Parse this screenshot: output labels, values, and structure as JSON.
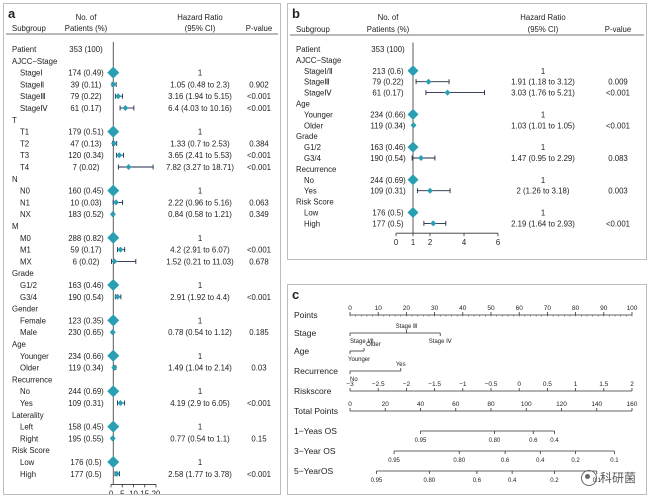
{
  "colors": {
    "diamond": "#2a9fb2",
    "line": "#1f2a44",
    "text": "#222222"
  },
  "panel_a": {
    "letter": "a",
    "headers": {
      "subgroup": "Subgroup",
      "patients_l1": "No. of",
      "patients_l2": "Patients (%)",
      "hr_l1": "Hazard Ratio",
      "hr_l2": "(95% CI)",
      "pvalue": "P-value"
    },
    "axis_ticks": [
      "0",
      "5",
      "10",
      "15",
      "20"
    ],
    "rows": [
      {
        "label": "Patient",
        "n": "353 (100)",
        "hr": "",
        "p": "",
        "kind": "group"
      },
      {
        "label": "AJCC−Stage",
        "n": "",
        "hr": "",
        "p": "",
        "kind": "group"
      },
      {
        "label": "StageⅠ",
        "n": "174 (0.49)",
        "hr": "1",
        "p": "",
        "kind": "sub"
      },
      {
        "label": "StageⅡ",
        "n": "39 (0.11)",
        "hr": "1.05 (0.48 to 2.3)",
        "p": "0.902",
        "kind": "sub"
      },
      {
        "label": "StageⅢ",
        "n": "79 (0.22)",
        "hr": "3.16 (1.94 to 5.15)",
        "p": "<0.001",
        "kind": "sub"
      },
      {
        "label": "StageⅣ",
        "n": "61 (0.17)",
        "hr": "6.4 (4.03 to 10.16)",
        "p": "<0.001",
        "kind": "sub"
      },
      {
        "label": "T",
        "n": "",
        "hr": "",
        "p": "",
        "kind": "group"
      },
      {
        "label": "T1",
        "n": "179 (0.51)",
        "hr": "1",
        "p": "",
        "kind": "sub"
      },
      {
        "label": "T2",
        "n": "47 (0.13)",
        "hr": "1.33 (0.7 to 2.53)",
        "p": "0.384",
        "kind": "sub"
      },
      {
        "label": "T3",
        "n": "120 (0.34)",
        "hr": "3.65 (2.41 to 5.53)",
        "p": "<0.001",
        "kind": "sub"
      },
      {
        "label": "T4",
        "n": "7 (0.02)",
        "hr": "7.82 (3.27 to 18.71)",
        "p": "<0.001",
        "kind": "sub"
      },
      {
        "label": "N",
        "n": "",
        "hr": "",
        "p": "",
        "kind": "group"
      },
      {
        "label": "N0",
        "n": "160 (0.45)",
        "hr": "1",
        "p": "",
        "kind": "sub"
      },
      {
        "label": "N1",
        "n": "10 (0.03)",
        "hr": "2.22 (0.96 to 5.16)",
        "p": "0.063",
        "kind": "sub"
      },
      {
        "label": "NX",
        "n": "183 (0.52)",
        "hr": "0.84 (0.58 to 1.21)",
        "p": "0.349",
        "kind": "sub"
      },
      {
        "label": "M",
        "n": "",
        "hr": "",
        "p": "",
        "kind": "group"
      },
      {
        "label": "M0",
        "n": "288 (0.82)",
        "hr": "1",
        "p": "",
        "kind": "sub"
      },
      {
        "label": "M1",
        "n": "59 (0.17)",
        "hr": "4.2 (2.91 to 6.07)",
        "p": "<0.001",
        "kind": "sub"
      },
      {
        "label": "MX",
        "n": "6 (0.02)",
        "hr": "1.52 (0.21 to 11.03)",
        "p": "0.678",
        "kind": "sub"
      },
      {
        "label": "Grade",
        "n": "",
        "hr": "",
        "p": "",
        "kind": "group"
      },
      {
        "label": "G1/2",
        "n": "163 (0.46)",
        "hr": "1",
        "p": "",
        "kind": "sub"
      },
      {
        "label": "G3/4",
        "n": "190 (0.54)",
        "hr": "2.91 (1.92 to 4.4)",
        "p": "<0.001",
        "kind": "sub"
      },
      {
        "label": "Gender",
        "n": "",
        "hr": "",
        "p": "",
        "kind": "group"
      },
      {
        "label": "Female",
        "n": "123 (0.35)",
        "hr": "1",
        "p": "",
        "kind": "sub"
      },
      {
        "label": "Male",
        "n": "230 (0.65)",
        "hr": "0.78 (0.54 to 1.12)",
        "p": "0.185",
        "kind": "sub"
      },
      {
        "label": "Age",
        "n": "",
        "hr": "",
        "p": "",
        "kind": "group"
      },
      {
        "label": "Younger",
        "n": "234 (0.66)",
        "hr": "1",
        "p": "",
        "kind": "sub"
      },
      {
        "label": "Older",
        "n": "119 (0.34)",
        "hr": "1.49 (1.04 to 2.14)",
        "p": "0.03",
        "kind": "sub"
      },
      {
        "label": "Recurrence",
        "n": "",
        "hr": "",
        "p": "",
        "kind": "group"
      },
      {
        "label": "No",
        "n": "244 (0.69)",
        "hr": "1",
        "p": "",
        "kind": "sub"
      },
      {
        "label": "Yes",
        "n": "109 (0.31)",
        "hr": "4.19 (2.9 to 6.05)",
        "p": "<0.001",
        "kind": "sub"
      },
      {
        "label": "Laterality",
        "n": "",
        "hr": "",
        "p": "",
        "kind": "group"
      },
      {
        "label": "Left",
        "n": "158 (0.45)",
        "hr": "1",
        "p": "",
        "kind": "sub"
      },
      {
        "label": "Right",
        "n": "195 (0.55)",
        "hr": "0.77 (0.54 to 1.1)",
        "p": "0.15",
        "kind": "sub"
      },
      {
        "label": "Risk Score",
        "n": "",
        "hr": "",
        "p": "",
        "kind": "group"
      },
      {
        "label": "Low",
        "n": "176 (0.5)",
        "hr": "1",
        "p": "",
        "kind": "sub"
      },
      {
        "label": "High",
        "n": "177 (0.5)",
        "hr": "2.58 (1.77 to 3.78)",
        "p": "<0.001",
        "kind": "sub"
      }
    ]
  },
  "panel_b": {
    "letter": "b",
    "headers": {
      "subgroup": "Subgroup",
      "patients_l1": "No. of",
      "patients_l2": "Patients (%)",
      "hr_l1": "Hazard Ratio",
      "hr_l2": "(95% CI)",
      "pvalue": "P-value"
    },
    "axis_ticks": [
      "0",
      "1",
      "2",
      "4",
      "6"
    ],
    "rows": [
      {
        "label": "Patient",
        "n": "353 (100)",
        "hr": "",
        "p": "",
        "kind": "group"
      },
      {
        "label": "AJCC−Stage",
        "n": "",
        "hr": "",
        "p": "",
        "kind": "group"
      },
      {
        "label": "StageⅠ/Ⅱ",
        "n": "213 (0.6)",
        "hr": "1",
        "p": "",
        "kind": "sub"
      },
      {
        "label": "StageⅢ",
        "n": "79 (0.22)",
        "hr": "1.91 (1.18 to 3.12)",
        "p": "0.009",
        "kind": "sub"
      },
      {
        "label": "StageⅣ",
        "n": "61 (0.17)",
        "hr": "3.03 (1.76 to 5.21)",
        "p": "<0.001",
        "kind": "sub"
      },
      {
        "label": "Age",
        "n": "",
        "hr": "",
        "p": "",
        "kind": "group"
      },
      {
        "label": "Younger",
        "n": "234 (0.66)",
        "hr": "1",
        "p": "",
        "kind": "sub"
      },
      {
        "label": "Older",
        "n": "119 (0.34)",
        "hr": "1.03 (1.01 to 1.05)",
        "p": "<0.001",
        "kind": "sub"
      },
      {
        "label": "Grade",
        "n": "",
        "hr": "",
        "p": "",
        "kind": "group"
      },
      {
        "label": "G1/2",
        "n": "163 (0.46)",
        "hr": "1",
        "p": "",
        "kind": "sub"
      },
      {
        "label": "G3/4",
        "n": "190 (0.54)",
        "hr": "1.47 (0.95 to 2.29)",
        "p": "0.083",
        "kind": "sub"
      },
      {
        "label": "Recurrence",
        "n": "",
        "hr": "",
        "p": "",
        "kind": "group"
      },
      {
        "label": "No",
        "n": "244 (0.69)",
        "hr": "1",
        "p": "",
        "kind": "sub"
      },
      {
        "label": "Yes",
        "n": "109 (0.31)",
        "hr": "2 (1.26 to 3.18)",
        "p": "0.003",
        "kind": "sub"
      },
      {
        "label": "Risk Score",
        "n": "",
        "hr": "",
        "p": "",
        "kind": "group"
      },
      {
        "label": "Low",
        "n": "176 (0.5)",
        "hr": "1",
        "p": "",
        "kind": "sub"
      },
      {
        "label": "High",
        "n": "177 (0.5)",
        "hr": "2.19 (1.64 to 2.93)",
        "p": "<0.001",
        "kind": "sub"
      }
    ]
  },
  "panel_c": {
    "letter": "c",
    "rows": [
      {
        "label": "Points",
        "kind": "points",
        "ticks": [
          "0",
          "10",
          "20",
          "30",
          "40",
          "50",
          "60",
          "70",
          "80",
          "90",
          "100"
        ]
      },
      {
        "label": "Stage",
        "kind": "stage",
        "values": [
          "Stage Ⅰ/Ⅱ",
          "Stage Ⅲ",
          "Stage Ⅳ"
        ]
      },
      {
        "label": "Age",
        "kind": "age",
        "values": [
          "Younger",
          "Older"
        ]
      },
      {
        "label": "Recurrence",
        "kind": "recurrence",
        "values": [
          "No",
          "Yes"
        ]
      },
      {
        "label": "Riskscore",
        "kind": "riskscore",
        "ticks": [
          "−3",
          "−2.5",
          "−2",
          "−1.5",
          "−1",
          "−0.5",
          "0",
          "0.5",
          "1",
          "1.5",
          "2"
        ]
      },
      {
        "label": "Total Points",
        "kind": "total",
        "ticks": [
          "0",
          "20",
          "40",
          "60",
          "80",
          "100",
          "120",
          "140",
          "160"
        ]
      },
      {
        "label": "1−Yeas OS",
        "kind": "os1",
        "ticks": [
          "0.95",
          "0.80",
          "0.6",
          "0.4"
        ]
      },
      {
        "label": "3−Year OS",
        "kind": "os3",
        "ticks": [
          "0.95",
          "0.80",
          "0.6",
          "0.4",
          "0.2",
          "0.1"
        ]
      },
      {
        "label": "5−YearOS",
        "kind": "os5",
        "ticks": [
          "0.95",
          "0.80",
          "0.6",
          "0.4",
          "0.2",
          "0.1"
        ]
      }
    ]
  },
  "watermark": {
    "text": "科研菌",
    "icon": "wechat-icon"
  },
  "chart_data": [
    {
      "type": "forest",
      "panel": "a",
      "xlim": [
        0,
        20
      ],
      "xticks": [
        0,
        5,
        10,
        15,
        20
      ],
      "reference": 1,
      "points": [
        {
          "row": 2,
          "hr": 1,
          "lo": 1,
          "hi": 1
        },
        {
          "row": 3,
          "hr": 1.05,
          "lo": 0.48,
          "hi": 2.3
        },
        {
          "row": 4,
          "hr": 3.16,
          "lo": 1.94,
          "hi": 5.15
        },
        {
          "row": 5,
          "hr": 6.4,
          "lo": 4.03,
          "hi": 10.16
        },
        {
          "row": 7,
          "hr": 1,
          "lo": 1,
          "hi": 1
        },
        {
          "row": 8,
          "hr": 1.33,
          "lo": 0.7,
          "hi": 2.53
        },
        {
          "row": 9,
          "hr": 3.65,
          "lo": 2.41,
          "hi": 5.53
        },
        {
          "row": 10,
          "hr": 7.82,
          "lo": 3.27,
          "hi": 18.71
        },
        {
          "row": 12,
          "hr": 1,
          "lo": 1,
          "hi": 1
        },
        {
          "row": 13,
          "hr": 2.22,
          "lo": 0.96,
          "hi": 5.16
        },
        {
          "row": 14,
          "hr": 0.84,
          "lo": 0.58,
          "hi": 1.21
        },
        {
          "row": 16,
          "hr": 1,
          "lo": 1,
          "hi": 1
        },
        {
          "row": 17,
          "hr": 4.2,
          "lo": 2.91,
          "hi": 6.07
        },
        {
          "row": 18,
          "hr": 1.52,
          "lo": 0.21,
          "hi": 11.03
        },
        {
          "row": 20,
          "hr": 1,
          "lo": 1,
          "hi": 1
        },
        {
          "row": 21,
          "hr": 2.91,
          "lo": 1.92,
          "hi": 4.4
        },
        {
          "row": 23,
          "hr": 1,
          "lo": 1,
          "hi": 1
        },
        {
          "row": 24,
          "hr": 0.78,
          "lo": 0.54,
          "hi": 1.12
        },
        {
          "row": 26,
          "hr": 1,
          "lo": 1,
          "hi": 1
        },
        {
          "row": 27,
          "hr": 1.49,
          "lo": 1.04,
          "hi": 2.14
        },
        {
          "row": 29,
          "hr": 1,
          "lo": 1,
          "hi": 1
        },
        {
          "row": 30,
          "hr": 4.19,
          "lo": 2.9,
          "hi": 6.05
        },
        {
          "row": 32,
          "hr": 1,
          "lo": 1,
          "hi": 1
        },
        {
          "row": 33,
          "hr": 0.77,
          "lo": 0.54,
          "hi": 1.1
        },
        {
          "row": 35,
          "hr": 1,
          "lo": 1,
          "hi": 1
        },
        {
          "row": 36,
          "hr": 2.58,
          "lo": 1.77,
          "hi": 3.78
        }
      ]
    },
    {
      "type": "forest",
      "panel": "b",
      "xlim": [
        0,
        6
      ],
      "xticks": [
        0,
        1,
        2,
        4,
        6
      ],
      "reference": 1,
      "points": [
        {
          "row": 2,
          "hr": 1,
          "lo": 1,
          "hi": 1
        },
        {
          "row": 3,
          "hr": 1.91,
          "lo": 1.18,
          "hi": 3.12
        },
        {
          "row": 4,
          "hr": 3.03,
          "lo": 1.76,
          "hi": 5.21
        },
        {
          "row": 6,
          "hr": 1,
          "lo": 1,
          "hi": 1
        },
        {
          "row": 7,
          "hr": 1.03,
          "lo": 1.01,
          "hi": 1.05
        },
        {
          "row": 9,
          "hr": 1,
          "lo": 1,
          "hi": 1
        },
        {
          "row": 10,
          "hr": 1.47,
          "lo": 0.95,
          "hi": 2.29
        },
        {
          "row": 12,
          "hr": 1,
          "lo": 1,
          "hi": 1
        },
        {
          "row": 13,
          "hr": 2,
          "lo": 1.26,
          "hi": 3.18
        },
        {
          "row": 15,
          "hr": 1,
          "lo": 1,
          "hi": 1
        },
        {
          "row": 16,
          "hr": 2.19,
          "lo": 1.64,
          "hi": 2.93
        }
      ]
    },
    {
      "type": "nomogram",
      "panel": "c",
      "points_range": [
        0,
        100
      ],
      "stage_points": {
        "Stage Ⅰ/Ⅱ": 0,
        "Stage Ⅲ": 20,
        "Stage Ⅳ": 32
      },
      "age_points": {
        "Younger": 0,
        "Older": 5
      },
      "recurrence_points": {
        "No": 0,
        "Yes": 18
      },
      "riskscore_range": [
        -3,
        2
      ],
      "total_points_range": [
        0,
        160
      ]
    }
  ]
}
